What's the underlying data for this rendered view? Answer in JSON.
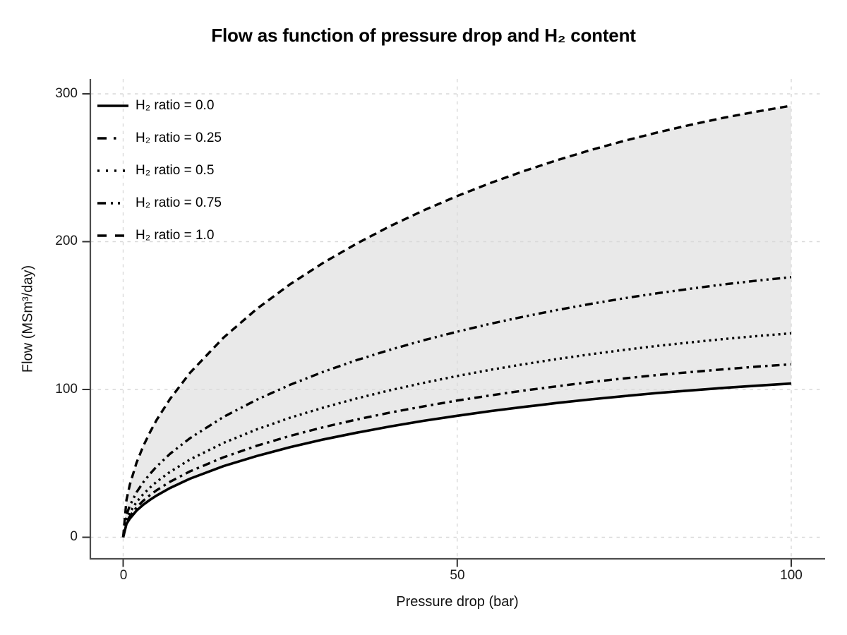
{
  "chart_data": {
    "type": "line",
    "title": "Flow as function of pressure drop and H₂ content",
    "xlabel": "Pressure drop (bar)",
    "ylabel": "Flow (MSm³/day)",
    "xlim": [
      0,
      100
    ],
    "ylim": [
      0,
      300
    ],
    "x_ticks": [
      0,
      50,
      100
    ],
    "y_ticks": [
      0,
      100,
      200,
      300
    ],
    "x_tick_labels": [
      "0",
      "50",
      "100"
    ],
    "y_tick_labels": [
      "0",
      "100",
      "200",
      "300"
    ],
    "grid": {
      "style": "dashed",
      "on": true
    },
    "legend_position": "upper-left-inside",
    "band": {
      "between": [
        "H₂ ratio = 0.0",
        "H₂ ratio = 1.0"
      ]
    },
    "x": [
      0,
      0.5,
      1,
      2,
      3,
      4,
      5,
      7,
      10,
      15,
      20,
      25,
      30,
      35,
      40,
      45,
      50,
      55,
      60,
      65,
      70,
      75,
      80,
      85,
      90,
      95,
      100
    ],
    "series": [
      {
        "label": "H₂ ratio = 0.0",
        "h2_ratio": 0.0,
        "linestyle": "solid",
        "flow_at_100bar": 104,
        "values": [
          0,
          9.0,
          12.7,
          18.0,
          22.0,
          25.3,
          28.2,
          33.3,
          39.6,
          48.1,
          55.0,
          61.0,
          66.2,
          70.8,
          75.0,
          78.8,
          82.2,
          85.4,
          88.2,
          90.9,
          93.3,
          95.5,
          97.6,
          99.4,
          101.1,
          102.6,
          104
        ]
      },
      {
        "label": "H₂ ratio = 0.25",
        "h2_ratio": 0.25,
        "linestyle": "dashdot",
        "flow_at_100bar": 117,
        "values": [
          0,
          10.1,
          14.3,
          20.2,
          24.7,
          28.5,
          31.8,
          37.5,
          44.6,
          54.1,
          61.9,
          68.6,
          74.5,
          79.7,
          84.4,
          88.6,
          92.5,
          96.0,
          99.3,
          102.2,
          105.0,
          107.5,
          109.8,
          111.8,
          113.7,
          115.5,
          117
        ]
      },
      {
        "label": "H₂ ratio = 0.5",
        "h2_ratio": 0.5,
        "linestyle": "dotted",
        "flow_at_100bar": 138,
        "values": [
          0,
          11.9,
          16.9,
          23.8,
          29.1,
          33.6,
          37.5,
          44.2,
          52.6,
          63.8,
          73.0,
          80.9,
          87.8,
          94.0,
          99.5,
          104.5,
          109.1,
          113.3,
          117.1,
          120.6,
          123.8,
          126.8,
          129.5,
          131.9,
          134.2,
          136.2,
          138
        ]
      },
      {
        "label": "H₂ ratio = 0.75",
        "h2_ratio": 0.75,
        "linestyle": "dashdotdot",
        "flow_at_100bar": 176,
        "values": [
          0,
          15.2,
          21.5,
          30.4,
          37.2,
          42.8,
          47.8,
          56.4,
          67.0,
          81.4,
          93.1,
          103.2,
          112.0,
          119.9,
          126.9,
          133.3,
          139.1,
          144.5,
          149.3,
          153.8,
          157.9,
          161.7,
          165.1,
          168.2,
          171.1,
          173.7,
          176
        ]
      },
      {
        "label": "H₂ ratio = 1.0",
        "h2_ratio": 1.0,
        "linestyle": "dashed",
        "flow_at_100bar": 292,
        "values": [
          0,
          25.3,
          35.7,
          50.4,
          61.6,
          71.0,
          79.3,
          93.5,
          111.2,
          135.0,
          154.5,
          171.2,
          185.8,
          198.8,
          210.6,
          221.2,
          230.9,
          239.7,
          247.8,
          255.2,
          262.0,
          268.2,
          273.9,
          279.1,
          283.9,
          288.1,
          292
        ]
      }
    ]
  },
  "colors": {
    "curve": "#000000",
    "band": "#e9e9e9",
    "grid": "#d9d9d9",
    "axis_line": "#4d4d4d",
    "tick_mark": "#333333",
    "text": "#000000",
    "background": "#ffffff"
  }
}
